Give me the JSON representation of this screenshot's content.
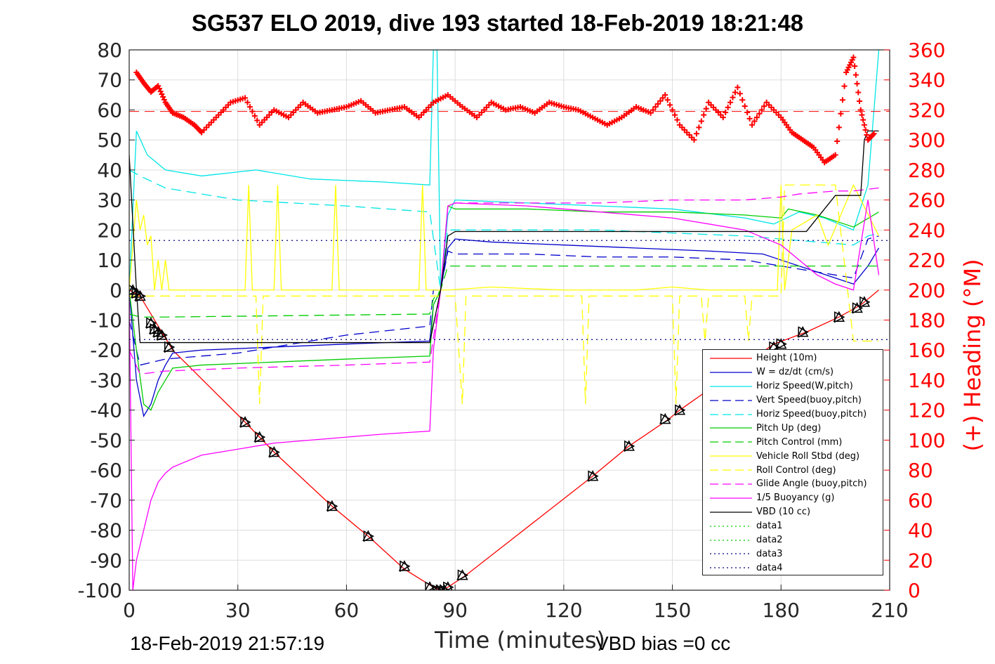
{
  "chart_data": {
    "type": "line",
    "title": "SG537 ELO 2019, dive 193 started 18-Feb-2019 18:21:48",
    "xlabel": "Time (minutes)",
    "ylabel": "",
    "y2label": "(+) Heading (°M)",
    "xlim": [
      0,
      210
    ],
    "ylim": [
      -100,
      80
    ],
    "y2lim": [
      0,
      360
    ],
    "xticks": [
      "0",
      "30",
      "60",
      "90",
      "120",
      "150",
      "180",
      "210"
    ],
    "yticks": [
      "80",
      "70",
      "60",
      "50",
      "40",
      "30",
      "20",
      "10",
      "0",
      "-10",
      "-20",
      "-30",
      "-40",
      "-50",
      "-60",
      "-70",
      "-80",
      "-90",
      "-100"
    ],
    "y2ticks": [
      "360",
      "340",
      "320",
      "300",
      "280",
      "260",
      "240",
      "220",
      "200",
      "180",
      "160",
      "140",
      "120",
      "100",
      "80",
      "60",
      "40",
      "20",
      "0"
    ],
    "grid": true,
    "legend_position": "bottom-right",
    "series": [
      {
        "name": "Height (10m)",
        "color": "#ff0000",
        "style": "solid",
        "x": [
          0,
          3,
          12,
          32,
          36,
          40,
          56,
          66,
          76,
          84,
          86,
          88,
          93,
          128,
          138,
          149,
          152,
          178,
          187,
          196,
          202,
          207
        ],
        "y": [
          0,
          -2,
          -20,
          -44,
          -49,
          -54,
          -72,
          -82,
          -93,
          -99,
          -100,
          -99,
          -95,
          -62,
          -52,
          -43,
          -40,
          -18,
          -14,
          -9,
          -5,
          0
        ]
      },
      {
        "name": "W = dz/dt (cm/s)",
        "color": "#0000cc",
        "style": "solid",
        "x": [
          0,
          1,
          2,
          4,
          6,
          8,
          10,
          12,
          20,
          40,
          60,
          83,
          84,
          86,
          88,
          90,
          100,
          120,
          140,
          160,
          175,
          180,
          185,
          190,
          200,
          204,
          207
        ],
        "y": [
          0,
          -15,
          -30,
          -42,
          -38,
          -30,
          -25,
          -21,
          -20,
          -19,
          -18,
          -17,
          -5,
          0,
          14,
          17,
          16,
          15,
          14,
          13,
          12,
          10,
          8,
          6,
          2,
          8,
          14
        ]
      },
      {
        "name": "Horiz Speed(W,pitch)",
        "color": "#00e5e5",
        "style": "solid",
        "x": [
          0,
          2,
          5,
          10,
          20,
          35,
          50,
          70,
          83,
          84,
          85,
          86,
          88,
          90,
          110,
          130,
          150,
          170,
          178,
          185,
          192,
          200,
          204,
          207
        ],
        "y": [
          0,
          53,
          45,
          40,
          38,
          40,
          37,
          36,
          35,
          80,
          80,
          0,
          25,
          30,
          29,
          28,
          27,
          24,
          22,
          26,
          24,
          20,
          35,
          80
        ]
      },
      {
        "name": "Vert Speed(buoy,pitch)",
        "color": "#0000cc",
        "style": "dashed",
        "x": [
          0,
          3,
          10,
          30,
          60,
          83,
          84,
          86,
          88,
          90,
          110,
          130,
          150,
          170,
          180,
          190,
          200,
          204,
          207
        ],
        "y": [
          -10,
          -25,
          -23,
          -21,
          -15,
          -12,
          0,
          0,
          13,
          12,
          12,
          11,
          11,
          10,
          8,
          6,
          4,
          17,
          18
        ]
      },
      {
        "name": "Horiz Speed(buoy,pitch)",
        "color": "#00e5e5",
        "style": "dashed",
        "x": [
          0,
          3,
          10,
          30,
          60,
          83,
          86,
          88,
          90,
          110,
          130,
          150,
          170,
          180,
          190,
          200,
          204,
          207
        ],
        "y": [
          40,
          38,
          34,
          30,
          28,
          26,
          0,
          20,
          20,
          20,
          20,
          19,
          18,
          17,
          16,
          15,
          18,
          19
        ]
      },
      {
        "name": "Pitch Up (deg)",
        "color": "#00cc00",
        "style": "solid",
        "x": [
          0,
          2,
          4,
          6,
          8,
          10,
          12,
          20,
          40,
          60,
          83,
          84,
          86,
          88,
          90,
          110,
          130,
          150,
          170,
          180,
          182,
          190,
          200,
          207
        ],
        "y": [
          0,
          -20,
          -38,
          -40,
          -34,
          -30,
          -26,
          -25,
          -24,
          -23,
          -22,
          -5,
          0,
          28,
          27,
          27,
          26,
          26,
          25,
          24,
          27,
          25,
          21,
          26
        ]
      },
      {
        "name": "Pitch Control (mm)",
        "color": "#00cc00",
        "style": "dashed",
        "x": [
          0,
          3,
          10,
          83,
          84,
          86,
          88,
          90,
          180,
          200,
          207
        ],
        "y": [
          -8,
          -9,
          -9,
          -8,
          -3,
          0,
          8,
          8,
          8,
          8,
          8
        ]
      },
      {
        "name": "Vehicle Roll Stbd (deg)",
        "color": "#ffff00",
        "style": "solid",
        "x": [
          0,
          2,
          3,
          4,
          5,
          6,
          7,
          8,
          9,
          10,
          11,
          12,
          20,
          32,
          33,
          34,
          36,
          40,
          41,
          42,
          56,
          57,
          58,
          80,
          81,
          82,
          84,
          86,
          88,
          100,
          120,
          140,
          150,
          160,
          175,
          179,
          180,
          181,
          183,
          190,
          193,
          200,
          207
        ],
        "y": [
          0,
          30,
          20,
          25,
          15,
          18,
          0,
          10,
          0,
          10,
          0,
          0,
          0,
          0,
          35,
          0,
          0,
          0,
          35,
          0,
          0,
          35,
          0,
          0,
          35,
          0,
          0,
          0,
          0,
          1,
          0,
          0,
          1,
          0,
          0,
          0,
          35,
          0,
          20,
          25,
          15,
          35,
          18
        ]
      },
      {
        "name": "Roll Control (deg)",
        "color": "#ffff00",
        "style": "dashed",
        "x": [
          0,
          3,
          10,
          35,
          36,
          37,
          80,
          84,
          86,
          90,
          92,
          93,
          94,
          125,
          126,
          127,
          150,
          151,
          152,
          158,
          159,
          160,
          170,
          171,
          172,
          180,
          181,
          182,
          195,
          200,
          207
        ],
        "y": [
          -2,
          -2,
          -2,
          -2,
          -38,
          -2,
          -2,
          -2,
          -2,
          -2,
          -38,
          -2,
          -2,
          -2,
          -38,
          -2,
          -2,
          -38,
          -2,
          -2,
          -17,
          -2,
          -2,
          -17,
          -2,
          -2,
          35,
          35,
          35,
          -17,
          -17
        ]
      },
      {
        "name": "Glide Angle (buoy,pitch)",
        "color": "#ff00ff",
        "style": "dashed",
        "x": [
          0,
          3,
          10,
          30,
          60,
          83,
          86,
          88,
          90,
          110,
          130,
          150,
          170,
          180,
          185,
          195,
          200,
          207
        ],
        "y": [
          -20,
          -28,
          -27,
          -26,
          -25,
          -24,
          0,
          28,
          29,
          29,
          29,
          30,
          30,
          31,
          32,
          33,
          33,
          34
        ]
      },
      {
        "name": "1/5 Buoyancy (g)",
        "color": "#ff00ff",
        "style": "solid",
        "x": [
          0,
          1,
          2,
          4,
          6,
          8,
          10,
          12,
          20,
          30,
          40,
          50,
          60,
          70,
          83,
          84,
          86,
          88,
          90,
          110,
          130,
          150,
          170,
          180,
          185,
          190,
          195,
          200,
          204,
          207
        ],
        "y": [
          0,
          -100,
          -90,
          -80,
          -70,
          -64,
          -61,
          -59,
          -55,
          -53,
          -51,
          -50,
          -49,
          -48,
          -47,
          -20,
          0,
          28,
          29,
          28,
          26,
          24,
          20,
          15,
          10,
          5,
          2,
          0,
          30,
          5
        ]
      },
      {
        "name": "VBD (10 cc)",
        "color": "#000000",
        "style": "solid",
        "x": [
          0,
          2,
          3,
          83,
          86,
          88,
          90,
          150,
          178,
          185,
          187,
          195,
          202,
          203,
          204,
          207
        ],
        "y": [
          45,
          0,
          -17.5,
          -17.5,
          0,
          18,
          19.5,
          19.5,
          19.5,
          19.5,
          19.5,
          31.5,
          31.5,
          50,
          53,
          53
        ]
      },
      {
        "name": "data1",
        "color": "#00cc00",
        "style": "dotted",
        "x": [],
        "y": []
      },
      {
        "name": "data2",
        "color": "#00cc00",
        "style": "dotted",
        "x": [],
        "y": []
      },
      {
        "name": "data3",
        "color": "#000080",
        "style": "dotted",
        "x": [
          0,
          210
        ],
        "y": [
          16.5,
          16.5
        ]
      },
      {
        "name": "data4",
        "color": "#000080",
        "style": "dotted",
        "x": [
          0,
          210
        ],
        "y": [
          -16.5,
          -16.5
        ]
      }
    ],
    "heading": {
      "name": "(+) Heading (°M)",
      "color": "#ff0000",
      "axis": "right",
      "marker": "+",
      "mean": 319,
      "x": [
        2,
        4,
        6,
        8,
        10,
        12,
        15,
        18,
        20,
        24,
        28,
        32,
        36,
        40,
        44,
        48,
        52,
        56,
        60,
        64,
        68,
        72,
        76,
        80,
        84,
        88,
        92,
        96,
        100,
        104,
        108,
        112,
        116,
        120,
        124,
        128,
        132,
        136,
        140,
        144,
        148,
        152,
        156,
        160,
        164,
        168,
        172,
        176,
        180,
        183,
        186,
        189,
        192,
        195,
        198,
        200,
        202,
        204,
        206
      ],
      "y": [
        345,
        338,
        332,
        336,
        325,
        318,
        315,
        310,
        305,
        315,
        325,
        328,
        310,
        320,
        315,
        325,
        318,
        320,
        322,
        326,
        318,
        320,
        322,
        315,
        325,
        330,
        322,
        315,
        325,
        320,
        322,
        318,
        325,
        322,
        320,
        315,
        310,
        315,
        322,
        318,
        330,
        310,
        300,
        325,
        315,
        335,
        310,
        325,
        315,
        305,
        300,
        295,
        285,
        290,
        345,
        355,
        320,
        300,
        305
      ]
    },
    "markers": {
      "name": "triangles",
      "color": "#000000",
      "x": [
        1,
        2,
        3,
        6,
        7,
        8,
        9,
        11,
        32,
        36,
        40,
        56,
        66,
        76,
        83,
        85,
        86,
        87,
        88,
        92,
        128,
        138,
        148,
        152,
        178,
        180,
        186,
        196,
        201,
        203
      ],
      "y": [
        0,
        -1,
        -2,
        -11,
        -13,
        -14,
        -15,
        -19,
        -44,
        -49,
        -54,
        -72,
        -82,
        -92,
        -99,
        -100,
        -100,
        -100,
        -99,
        -95,
        -62,
        -52,
        -43,
        -40,
        -19,
        -18,
        -14,
        -9,
        -6,
        -4
      ]
    }
  },
  "footer": {
    "timestamp": "18-Feb-2019 21:57:19",
    "vbd_bias": "VBD bias =0 cc"
  }
}
